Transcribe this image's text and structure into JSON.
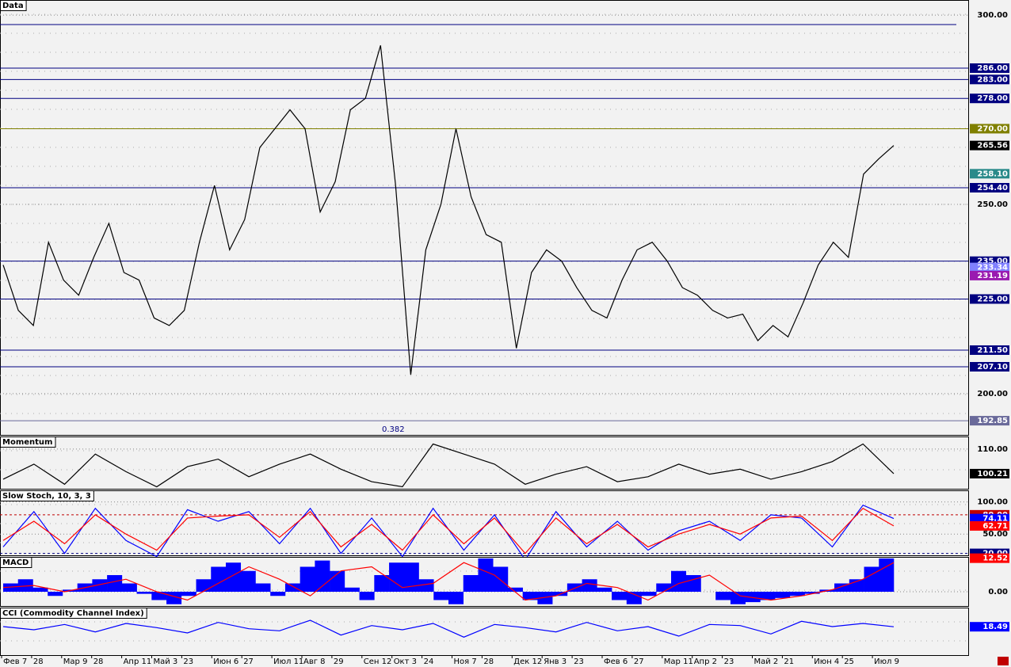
{
  "chart_data": [
    {
      "type": "line",
      "title": "Data",
      "ylim": [
        189.1,
        304
      ],
      "grid": true,
      "yticks": [
        {
          "value": 300,
          "label": "300.00"
        },
        {
          "value": 250,
          "label": "250.00"
        },
        {
          "value": 200,
          "label": "200.00"
        }
      ],
      "lines": [
        297.5
      ],
      "levels": [
        {
          "value": 286,
          "label": "286.00",
          "color": "#000080"
        },
        {
          "value": 283,
          "label": "283.00",
          "color": "#000080"
        },
        {
          "value": 278,
          "label": "278.00",
          "color": "#000080"
        },
        {
          "value": 270,
          "label": "270.00",
          "color": "#808000"
        },
        {
          "value": 254.4,
          "label": "254.40",
          "color": "#000080"
        },
        {
          "value": 235,
          "label": "235.00",
          "color": "#000080"
        },
        {
          "value": 225,
          "label": "225.00",
          "color": "#000080"
        },
        {
          "value": 211.5,
          "label": "211.50",
          "color": "#000080"
        },
        {
          "value": 207.1,
          "label": "207.10",
          "color": "#000080"
        },
        {
          "value": 192.85,
          "label": "192.85",
          "color": "#6a6a9a"
        }
      ],
      "markers": [
        {
          "value": 265.56,
          "label": "265.56",
          "color": "#000000"
        },
        {
          "value": 258.1,
          "label": "258.10",
          "color": "#2a8a8a"
        },
        {
          "value": 233.34,
          "label": "233.34",
          "color": "#8080ff"
        },
        {
          "value": 231.19,
          "label": "231.19",
          "color": "#9a1ab0"
        }
      ],
      "annotation": "0.382",
      "series": [
        {
          "name": "Price",
          "color": "#000000",
          "values": [
            234,
            222,
            218,
            240,
            230,
            226,
            236,
            245,
            232,
            230,
            220,
            218,
            222,
            240,
            255,
            238,
            246,
            265,
            270,
            275,
            270,
            248,
            256,
            275,
            278,
            292,
            255,
            205,
            238,
            250,
            270,
            252,
            242,
            240,
            212,
            232,
            238,
            235,
            228,
            222,
            220,
            230,
            238,
            240,
            235,
            228,
            226,
            222,
            220,
            221,
            214,
            218,
            215,
            224,
            234,
            240,
            236,
            258,
            262,
            265.56
          ]
        }
      ]
    },
    {
      "type": "line",
      "title": "Momentum",
      "ylim": [
        94.2,
        115
      ],
      "grid": true,
      "yticks": [
        {
          "value": 110,
          "label": "110.00"
        }
      ],
      "markers": [
        {
          "value": 100.21,
          "label": "100.21",
          "color": "#000000"
        }
      ],
      "series": [
        {
          "name": "Momentum",
          "color": "#000000",
          "values": [
            98,
            104,
            96,
            108,
            101,
            95,
            103,
            106,
            99,
            104,
            108,
            102,
            97,
            95,
            112,
            108,
            104,
            96,
            100,
            103,
            97,
            99,
            104,
            100,
            102,
            98,
            101,
            105,
            112,
            100.21
          ]
        }
      ]
    },
    {
      "type": "line",
      "title": "Slow Stoch, 10, 3, 3",
      "ylim": [
        17,
        118
      ],
      "grid": true,
      "level_dash": true,
      "yticks": [
        {
          "value": 100,
          "label": "100.00"
        },
        {
          "value": 50,
          "label": "50.00"
        }
      ],
      "levels": [
        {
          "value": 80,
          "label": "80.00",
          "color": "#c00000"
        },
        {
          "value": 20,
          "label": "20.00",
          "color": "#000080"
        }
      ],
      "markers": [
        {
          "value": 74.11,
          "label": "74.11",
          "color": "#0000ff"
        },
        {
          "value": 62.71,
          "label": "62.71",
          "color": "#ff0000"
        },
        {
          "value": 12.52,
          "label": "12.52",
          "color": "#ff0000"
        }
      ],
      "series": [
        {
          "name": "%K",
          "color": "#0000ff",
          "values": [
            30,
            85,
            20,
            90,
            40,
            15,
            88,
            70,
            85,
            35,
            90,
            20,
            75,
            15,
            90,
            25,
            80,
            10,
            85,
            30,
            70,
            25,
            55,
            70,
            40,
            80,
            75,
            30,
            95,
            74.11
          ]
        },
        {
          "name": "%D",
          "color": "#ff0000",
          "values": [
            40,
            70,
            35,
            80,
            50,
            25,
            75,
            78,
            80,
            45,
            85,
            30,
            65,
            25,
            80,
            35,
            75,
            20,
            75,
            35,
            65,
            30,
            50,
            65,
            50,
            75,
            78,
            40,
            90,
            62.71
          ]
        }
      ]
    },
    {
      "type": "bar",
      "title": "MACD",
      "ylim": [
        -3.43,
        8.38
      ],
      "grid": true,
      "yticks": [
        {
          "value": 0,
          "label": "0.00"
        }
      ],
      "series": [
        {
          "name": "MACD",
          "color": "#0000ff",
          "values": [
            2,
            3,
            1,
            -1,
            0.5,
            2,
            3,
            4,
            2,
            -0.5,
            -2,
            -3,
            -1,
            3,
            6,
            7,
            5,
            2,
            -1,
            2,
            6,
            7.5,
            5,
            1,
            -2,
            4,
            7,
            7,
            3,
            -2,
            -3,
            4,
            8,
            6,
            1,
            -2,
            -3,
            -1,
            2,
            3,
            1,
            -2,
            -3,
            -1,
            2,
            5,
            4,
            0,
            -2,
            -3,
            -2.5,
            -2,
            -1.5,
            -1,
            -0.5,
            0.5,
            2,
            3,
            6,
            8
          ]
        },
        {
          "name": "Signal",
          "type": "line",
          "color": "#ff0000",
          "values": [
            1,
            1.5,
            0,
            1.5,
            3,
            0,
            -2,
            2,
            6,
            3,
            -1,
            5,
            6,
            1,
            2,
            7,
            4,
            -2,
            -1,
            2,
            1,
            -2,
            2,
            4,
            -1,
            -2,
            -1,
            0.5,
            3,
            7
          ]
        }
      ]
    },
    {
      "type": "line",
      "title": "CCI (Commodity Channel Index)",
      "ylim": [
        -250,
        200
      ],
      "grid": true,
      "yticks": [],
      "markers": [
        {
          "value": 18.49,
          "label": "18.49",
          "color": "#0000ff"
        }
      ],
      "xtick_labels": [
        "Фев 7",
        "28",
        "Мар 9",
        "28",
        "Апр 11",
        "Май 3",
        "23",
        "Июн 6",
        "27",
        "Июл 11",
        "Авг 8",
        "29",
        "Сен 12",
        "Окт 3",
        "24",
        "Ноя 7",
        "28",
        "Дек 12",
        "Янв 3",
        "23",
        "Фев 6",
        "27",
        "Мар 11",
        "Апр 2",
        "23",
        "Май 2",
        "21",
        "Июн 4",
        "25",
        "Июл 9"
      ],
      "series": [
        {
          "name": "CCI",
          "color": "#0000ff",
          "values": [
            20,
            -10,
            40,
            -30,
            50,
            10,
            -40,
            60,
            0,
            -20,
            80,
            -60,
            30,
            -10,
            50,
            -80,
            40,
            10,
            -30,
            60,
            -20,
            20,
            -70,
            40,
            30,
            -50,
            70,
            20,
            50,
            18.49
          ]
        }
      ]
    }
  ]
}
